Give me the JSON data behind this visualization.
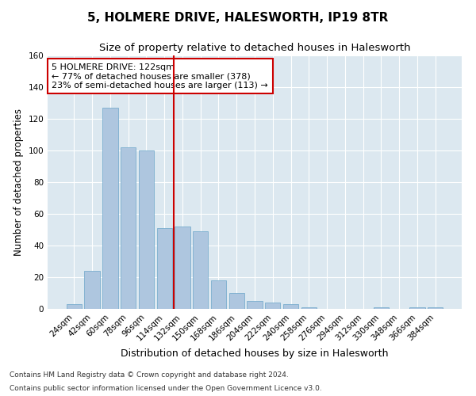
{
  "title": "5, HOLMERE DRIVE, HALESWORTH, IP19 8TR",
  "subtitle": "Size of property relative to detached houses in Halesworth",
  "xlabel": "Distribution of detached houses by size in Halesworth",
  "ylabel": "Number of detached properties",
  "categories": [
    "24sqm",
    "42sqm",
    "60sqm",
    "78sqm",
    "96sqm",
    "114sqm",
    "132sqm",
    "150sqm",
    "168sqm",
    "186sqm",
    "204sqm",
    "222sqm",
    "240sqm",
    "258sqm",
    "276sqm",
    "294sqm",
    "312sqm",
    "330sqm",
    "348sqm",
    "366sqm",
    "384sqm"
  ],
  "values": [
    3,
    24,
    127,
    102,
    100,
    51,
    52,
    49,
    18,
    10,
    5,
    4,
    3,
    1,
    0,
    0,
    0,
    1,
    0,
    1,
    1
  ],
  "bar_color": "#aec6df",
  "bar_edge_color": "#7aaecf",
  "vline_x": 5.5,
  "vline_color": "#cc0000",
  "annotation_text": "5 HOLMERE DRIVE: 122sqm\n← 77% of detached houses are smaller (378)\n23% of semi-detached houses are larger (113) →",
  "annotation_box_color": "#ffffff",
  "annotation_box_edge_color": "#cc0000",
  "ylim": [
    0,
    160
  ],
  "yticks": [
    0,
    20,
    40,
    60,
    80,
    100,
    120,
    140,
    160
  ],
  "background_color": "#dce8f0",
  "footnote1": "Contains HM Land Registry data © Crown copyright and database right 2024.",
  "footnote2": "Contains public sector information licensed under the Open Government Licence v3.0.",
  "title_fontsize": 11,
  "subtitle_fontsize": 9.5,
  "xlabel_fontsize": 9,
  "ylabel_fontsize": 8.5,
  "tick_fontsize": 7.5,
  "footnote_fontsize": 6.5
}
